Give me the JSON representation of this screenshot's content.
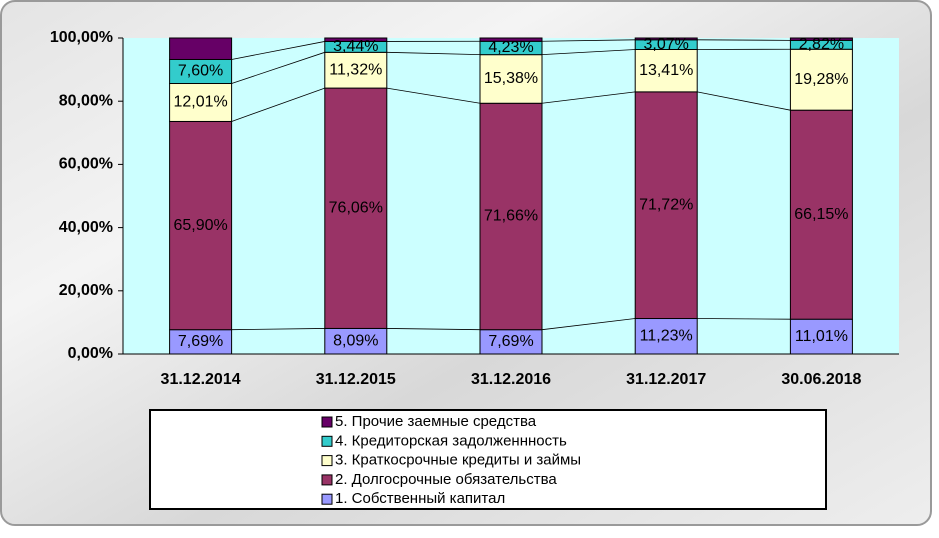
{
  "chart_data": {
    "type": "stacked_bar",
    "categories": [
      "31.12.2014",
      "31.12.2015",
      "31.12.2016",
      "31.12.2017",
      "30.06.2018"
    ],
    "series": [
      {
        "name": "1. Собственный капитал",
        "color": "#9999ff",
        "values": [
          7.69,
          8.09,
          7.69,
          11.23,
          11.01
        ],
        "value_labels": [
          "7,69%",
          "8,09%",
          "7,69%",
          "11,23%",
          "11,01%"
        ]
      },
      {
        "name": "2. Долгосрочные обязательства",
        "color": "#993366",
        "values": [
          65.9,
          76.06,
          71.66,
          71.72,
          66.15
        ],
        "value_labels": [
          "65,90%",
          "76,06%",
          "71,66%",
          "71,72%",
          "66,15%"
        ]
      },
      {
        "name": "3. Краткосрочные кредиты и займы",
        "color": "#ffffcc",
        "values": [
          12.01,
          11.32,
          15.38,
          13.41,
          19.28
        ],
        "value_labels": [
          "12,01%",
          "11,32%",
          "15,38%",
          "13,41%",
          "19,28%"
        ]
      },
      {
        "name": "4. Кредиторская задолженнность",
        "color": "#33cccc",
        "values": [
          7.6,
          3.44,
          4.23,
          3.07,
          2.82
        ],
        "value_labels": [
          "7,60%",
          "3,44%",
          "4,23%",
          "3,07%",
          "2,82%"
        ]
      },
      {
        "name": "5. Прочие заемные средства",
        "color": "#660066",
        "values": [
          6.8,
          1.09,
          1.04,
          0.57,
          0.74
        ]
      }
    ],
    "ylim": [
      0,
      100
    ],
    "yticks": [
      {
        "value": 0,
        "label": "0,00%"
      },
      {
        "value": 20,
        "label": "20,00%"
      },
      {
        "value": 40,
        "label": "40,00%"
      },
      {
        "value": 60,
        "label": "60,00%"
      },
      {
        "value": 80,
        "label": "80,00%"
      },
      {
        "value": 100,
        "label": "100,00%"
      }
    ],
    "legend": "bottom"
  }
}
